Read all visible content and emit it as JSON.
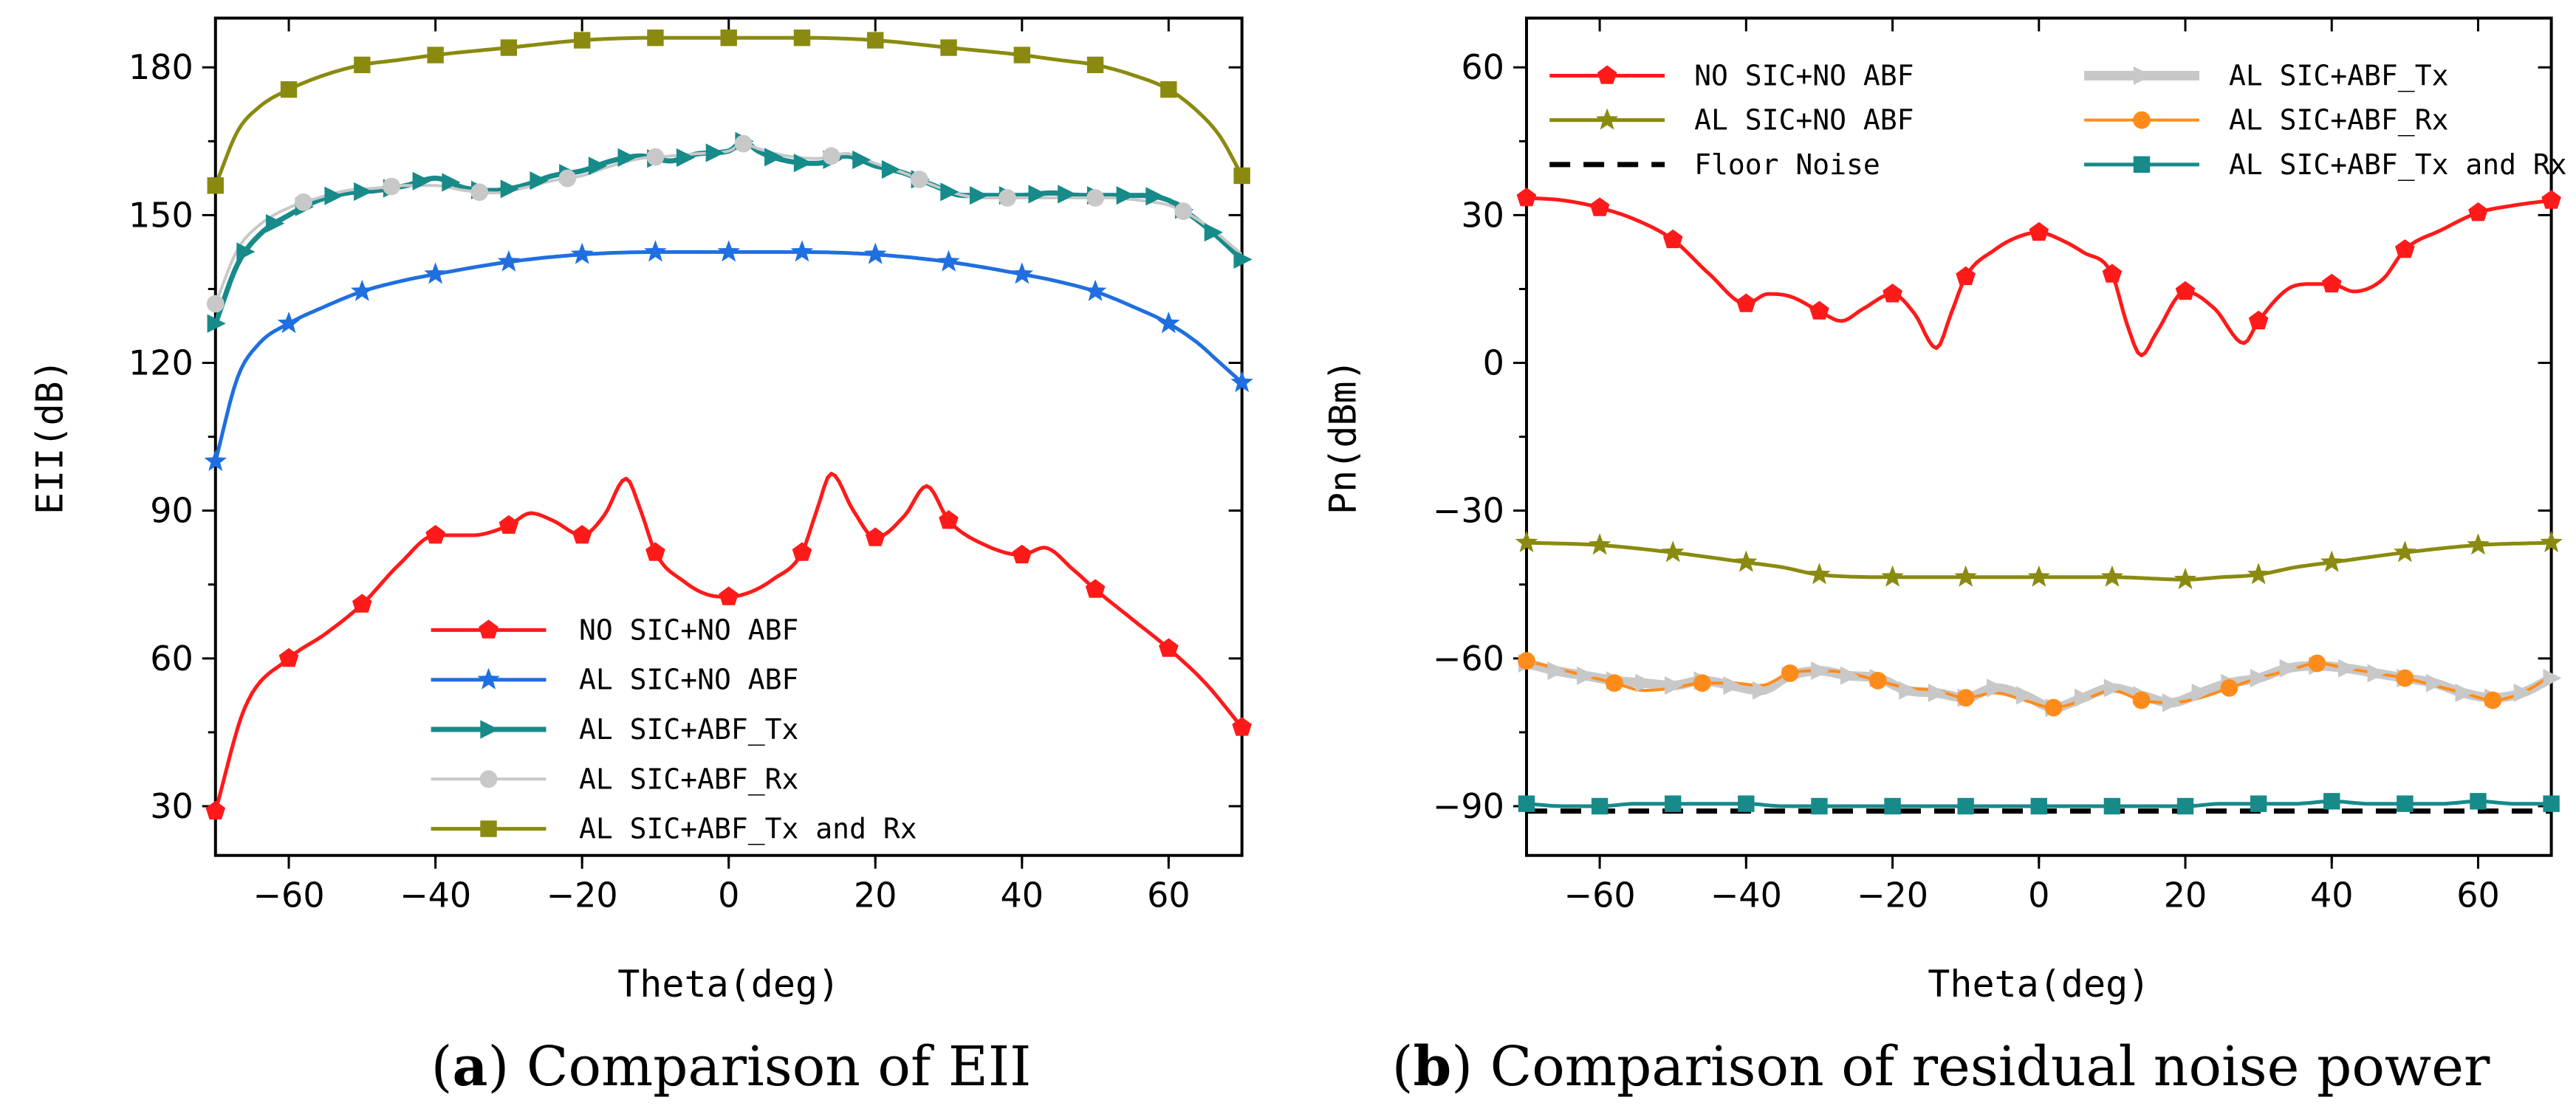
{
  "chart_data": [
    {
      "type": "line",
      "caption_label": "a",
      "caption_text": "Comparison of EII",
      "title": "",
      "xlabel": "Theta(deg)",
      "ylabel": "EII(dB)",
      "xlim": [
        -70,
        70
      ],
      "ylim": [
        20,
        190
      ],
      "xticks": [
        -60,
        -40,
        -20,
        0,
        20,
        40,
        60
      ],
      "yticks": [
        30,
        60,
        90,
        120,
        150,
        180
      ],
      "legend_position": "lower-center",
      "series": [
        {
          "name": "NO SIC+NO ABF",
          "color": "#ff1a1a",
          "marker": "pentagon",
          "width": 5,
          "x": [
            -70,
            -66,
            -60,
            -55,
            -50,
            -45,
            -40,
            -35,
            -30,
            -27,
            -24,
            -20,
            -17,
            -14,
            -12,
            -10,
            -6,
            -3,
            0,
            3,
            6,
            10,
            12,
            14,
            17,
            20,
            24,
            27,
            30,
            35,
            40,
            43,
            47,
            50,
            55,
            60,
            65,
            70
          ],
          "values": [
            29,
            50,
            60,
            65,
            71,
            79,
            85,
            85,
            87,
            89.5,
            88,
            85,
            89,
            96.5,
            90,
            81.5,
            75.5,
            73,
            72.5,
            73.5,
            76,
            81.5,
            90,
            97.5,
            90,
            84.5,
            89,
            95,
            88,
            83,
            81,
            82.5,
            78,
            74,
            68,
            62,
            55,
            46
          ],
          "marker_x": [
            -70,
            -60,
            -50,
            -40,
            -30,
            -20,
            -10,
            0,
            10,
            20,
            30,
            40,
            50,
            60,
            70
          ]
        },
        {
          "name": "AL SIC+NO ABF",
          "color": "#1f6fe0",
          "marker": "star",
          "width": 5,
          "x": [
            -70,
            -67,
            -64,
            -60,
            -55,
            -50,
            -45,
            -40,
            -30,
            -20,
            -10,
            0,
            10,
            20,
            30,
            40,
            45,
            50,
            55,
            60,
            64,
            67,
            70
          ],
          "values": [
            100,
            117,
            124,
            128,
            131.5,
            134.5,
            136.5,
            138,
            140.5,
            142,
            142.5,
            142.5,
            142.5,
            142,
            140.5,
            138,
            136.5,
            134.5,
            131.5,
            128,
            124,
            120,
            116
          ],
          "marker_x": [
            -70,
            -60,
            -50,
            -40,
            -30,
            -20,
            -10,
            0,
            10,
            20,
            30,
            40,
            50,
            60,
            70
          ]
        },
        {
          "name": "AL SIC+ABF_Tx",
          "color": "#178a8a",
          "marker": "triangle-right",
          "width": 7,
          "x": [
            -70,
            -67,
            -64,
            -60,
            -56,
            -52,
            -48,
            -44,
            -40,
            -36,
            -32,
            -28,
            -24,
            -20,
            -16,
            -12,
            -8,
            -4,
            0,
            2,
            4,
            8,
            12,
            16,
            20,
            24,
            28,
            32,
            36,
            40,
            44,
            48,
            52,
            56,
            60,
            63,
            66,
            70
          ],
          "values": [
            128,
            140,
            146,
            150,
            153,
            154.5,
            155,
            156,
            157.5,
            155.5,
            155,
            156,
            158,
            159,
            161,
            162,
            161,
            162.5,
            163,
            165,
            163,
            161,
            160.5,
            162,
            160,
            158.5,
            156,
            154,
            154,
            154,
            154.5,
            154,
            154,
            154,
            153,
            150,
            146.5,
            141
          ],
          "marker_x": [
            -70,
            -66,
            -62,
            -58,
            -54,
            -50,
            -46,
            -42,
            -38,
            -34,
            -30,
            -26,
            -22,
            -18,
            -14,
            -10,
            -6,
            -2,
            2,
            6,
            10,
            14,
            18,
            22,
            26,
            30,
            34,
            38,
            42,
            46,
            50,
            54,
            58,
            62,
            66,
            70
          ]
        },
        {
          "name": "AL SIC+ABF_Rx",
          "color": "#c8c8c8",
          "marker": "circle",
          "width": 4,
          "x": [
            -70,
            -67,
            -64,
            -60,
            -56,
            -52,
            -48,
            -44,
            -40,
            -36,
            -32,
            -28,
            -24,
            -20,
            -16,
            -12,
            -8,
            -4,
            0,
            2,
            4,
            8,
            12,
            16,
            20,
            24,
            28,
            32,
            36,
            40,
            44,
            48,
            52,
            56,
            60,
            63,
            66,
            70
          ],
          "values": [
            132,
            143,
            148,
            151.5,
            153.5,
            155,
            155.5,
            156,
            156,
            155,
            154.5,
            155.5,
            157,
            158,
            160,
            161.5,
            162,
            162.5,
            163,
            164.5,
            163.5,
            162,
            161.5,
            162.5,
            160.5,
            158.5,
            156,
            154,
            153.5,
            153.5,
            153.5,
            153.5,
            153.5,
            153,
            152,
            150,
            147,
            142
          ],
          "marker_x": [
            -70,
            -58,
            -46,
            -34,
            -22,
            -10,
            2,
            14,
            26,
            38,
            50,
            62
          ]
        },
        {
          "name": "AL SIC+ABF_Tx and Rx",
          "color": "#8a8a10",
          "marker": "square",
          "width": 5,
          "x": [
            -70,
            -67,
            -64,
            -60,
            -55,
            -50,
            -45,
            -40,
            -30,
            -20,
            -10,
            0,
            10,
            20,
            30,
            40,
            45,
            50,
            55,
            60,
            64,
            67,
            70
          ],
          "values": [
            156,
            167,
            172,
            175.5,
            178.5,
            180.5,
            181.5,
            182.5,
            184,
            185.5,
            186,
            186,
            186,
            185.5,
            184,
            182.5,
            181.5,
            180.5,
            178.5,
            175.5,
            171,
            166,
            158
          ],
          "marker_x": [
            -70,
            -60,
            -50,
            -40,
            -30,
            -20,
            -10,
            0,
            10,
            20,
            30,
            40,
            50,
            60,
            70
          ]
        }
      ]
    },
    {
      "type": "line",
      "caption_label": "b",
      "caption_text": "Comparison of residual noise power",
      "title": "",
      "xlabel": "Theta(deg)",
      "ylabel": "Pn(dBm)",
      "xlim": [
        -70,
        70
      ],
      "ylim": [
        -100,
        70
      ],
      "xticks": [
        -60,
        -40,
        -20,
        0,
        20,
        40,
        60
      ],
      "yticks": [
        60,
        30,
        0,
        -30,
        -60,
        -90
      ],
      "legend_position": "top",
      "series": [
        {
          "name": "NO SIC+NO ABF",
          "color": "#ff1a1a",
          "marker": "pentagon",
          "width": 5,
          "x": [
            -70,
            -65,
            -60,
            -55,
            -50,
            -45,
            -40,
            -37,
            -34,
            -30,
            -27,
            -24,
            -20,
            -17,
            -14,
            -12,
            -10,
            -6,
            -3,
            0,
            3,
            6,
            10,
            12,
            14,
            16,
            20,
            24,
            28,
            30,
            34,
            37,
            40,
            43,
            47,
            50,
            55,
            60,
            65,
            70
          ],
          "values": [
            33.5,
            33,
            31.5,
            29,
            25,
            18,
            12,
            14,
            13.5,
            10.5,
            8.5,
            11,
            14,
            10,
            3,
            10,
            17.5,
            23,
            25.5,
            26.5,
            25,
            22.5,
            18,
            8,
            1.5,
            6,
            14.5,
            11,
            4,
            8.5,
            15,
            16,
            16,
            14.5,
            17,
            23,
            27,
            30.5,
            32,
            33
          ],
          "marker_x": [
            -70,
            -60,
            -50,
            -40,
            -30,
            -20,
            -10,
            0,
            10,
            20,
            30,
            40,
            50,
            60,
            70
          ]
        },
        {
          "name": "AL SIC+NO ABF",
          "color": "#8a8a10",
          "marker": "star",
          "width": 5,
          "x": [
            -70,
            -60,
            -50,
            -40,
            -35,
            -30,
            -20,
            -10,
            0,
            10,
            20,
            25,
            30,
            35,
            40,
            50,
            60,
            70
          ],
          "values": [
            -36.5,
            -37,
            -38.5,
            -40.5,
            -41.5,
            -43,
            -43.5,
            -43.5,
            -43.5,
            -43.5,
            -44,
            -43.5,
            -43,
            -41.5,
            -40.5,
            -38.5,
            -37,
            -36.5
          ],
          "marker_x": [
            -70,
            -60,
            -50,
            -40,
            -30,
            -20,
            -10,
            0,
            10,
            20,
            30,
            40,
            50,
            60,
            70
          ]
        },
        {
          "name": "Floor Noise",
          "color": "#000000",
          "marker": "none",
          "dash": "28,18",
          "width": 7,
          "x": [
            -70,
            70
          ],
          "values": [
            -91,
            -91
          ],
          "marker_x": []
        },
        {
          "name": "AL SIC+ABF_Tx",
          "color": "#c8c8c8",
          "marker": "triangle-right",
          "width": 13,
          "x": [
            -70,
            -66,
            -62,
            -58,
            -54,
            -50,
            -46,
            -42,
            -38,
            -34,
            -30,
            -26,
            -22,
            -18,
            -14,
            -10,
            -6,
            -2,
            2,
            6,
            10,
            14,
            18,
            22,
            26,
            30,
            34,
            38,
            42,
            46,
            50,
            54,
            58,
            62,
            66,
            70
          ],
          "values": [
            -61,
            -62.5,
            -63.5,
            -64.5,
            -65,
            -65.5,
            -64.5,
            -65.5,
            -66.5,
            -63.5,
            -62.5,
            -63.5,
            -64,
            -66.5,
            -67,
            -68,
            -66,
            -67.5,
            -70,
            -68,
            -66,
            -67.5,
            -69,
            -67,
            -65,
            -64,
            -62,
            -61.5,
            -62,
            -63,
            -64,
            -65,
            -67,
            -68,
            -67,
            -64
          ],
          "marker_x": [
            -70,
            -66,
            -62,
            -58,
            -54,
            -50,
            -46,
            -42,
            -38,
            -34,
            -30,
            -26,
            -22,
            -18,
            -14,
            -10,
            -6,
            -2,
            2,
            6,
            10,
            14,
            18,
            22,
            26,
            30,
            34,
            38,
            42,
            46,
            50,
            54,
            58,
            62,
            66,
            70
          ]
        },
        {
          "name": "AL SIC+ABF_Rx",
          "color": "#ff8c1a",
          "marker": "circle",
          "width": 4,
          "x": [
            -70,
            -66,
            -62,
            -58,
            -54,
            -50,
            -46,
            -42,
            -38,
            -34,
            -30,
            -26,
            -22,
            -18,
            -14,
            -10,
            -6,
            -2,
            2,
            6,
            10,
            14,
            18,
            22,
            26,
            30,
            34,
            38,
            42,
            46,
            50,
            54,
            58,
            62,
            66,
            70
          ],
          "values": [
            -60.5,
            -62,
            -63.5,
            -65,
            -66.5,
            -66,
            -65,
            -65,
            -65.5,
            -63,
            -62.5,
            -63,
            -64.5,
            -66,
            -66.5,
            -68,
            -67,
            -68.5,
            -70,
            -68.5,
            -66.5,
            -68.5,
            -69,
            -68,
            -66,
            -64,
            -62.5,
            -61,
            -62,
            -63,
            -64,
            -65.5,
            -67,
            -68.5,
            -67,
            -63.5
          ],
          "marker_x": [
            -70,
            -58,
            -46,
            -34,
            -22,
            -10,
            2,
            14,
            26,
            38,
            50,
            62
          ]
        },
        {
          "name": "AL SIC+ABF_Tx and Rx",
          "color": "#178a8a",
          "marker": "square",
          "width": 5,
          "x": [
            -70,
            -65,
            -60,
            -55,
            -50,
            -45,
            -40,
            -35,
            -30,
            -25,
            -20,
            -15,
            -10,
            -5,
            0,
            5,
            10,
            15,
            20,
            25,
            30,
            35,
            40,
            45,
            50,
            55,
            60,
            65,
            70
          ],
          "values": [
            -89.5,
            -90,
            -90,
            -89.5,
            -89.5,
            -89.5,
            -89.5,
            -90,
            -90,
            -90,
            -90,
            -90,
            -90,
            -90,
            -90,
            -90,
            -90,
            -90,
            -90,
            -89.5,
            -89.5,
            -89.5,
            -89,
            -89.5,
            -89.5,
            -89.5,
            -89,
            -89.5,
            -89.5
          ],
          "marker_x": [
            -70,
            -60,
            -50,
            -40,
            -30,
            -20,
            -10,
            0,
            10,
            20,
            30,
            40,
            50,
            60,
            70
          ]
        }
      ]
    }
  ]
}
